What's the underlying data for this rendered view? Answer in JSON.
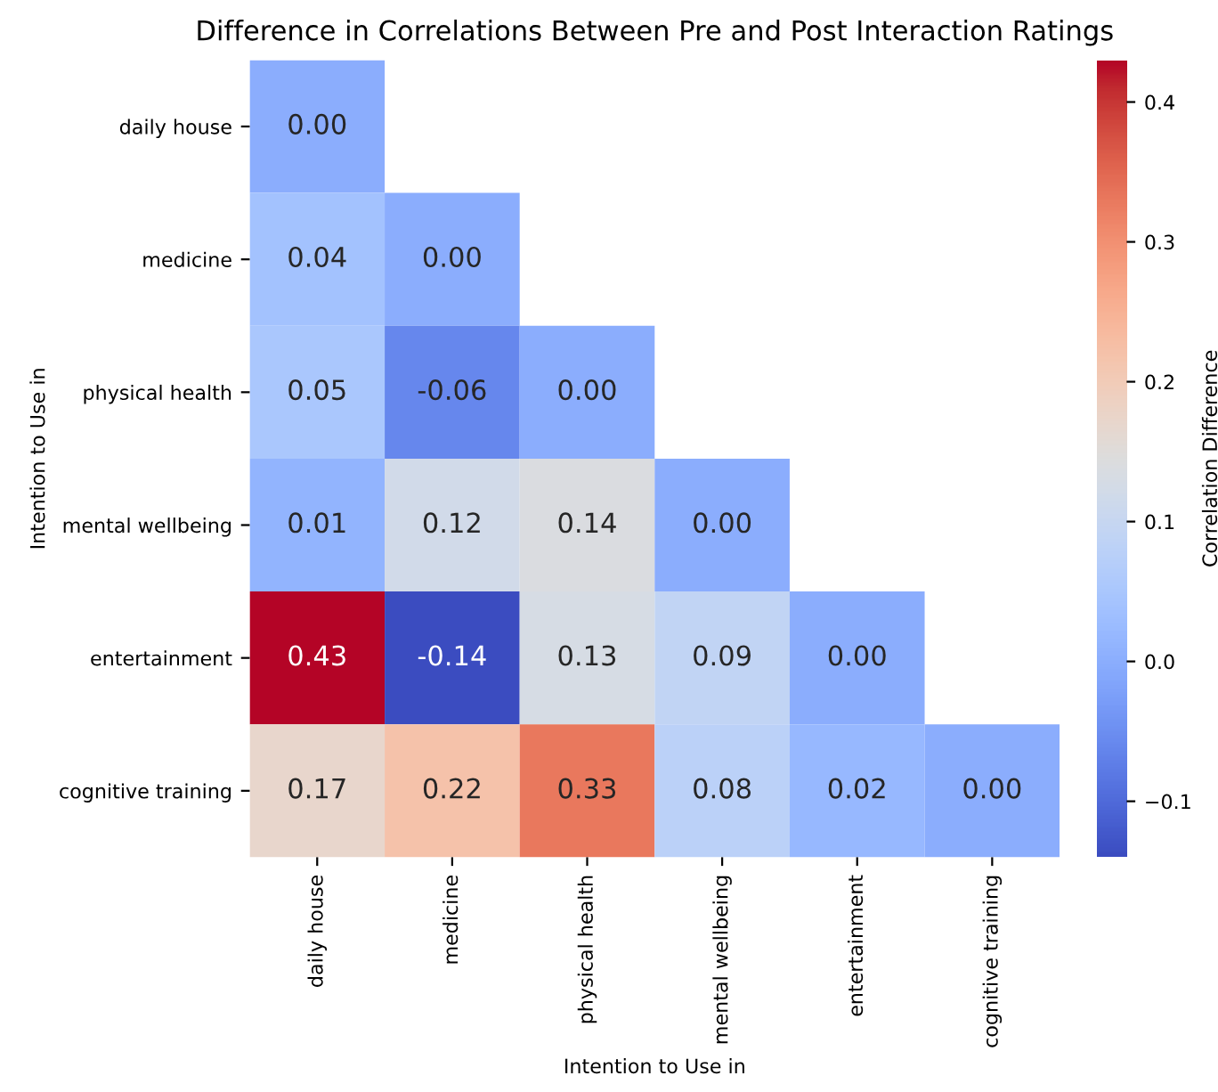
{
  "chart_data": {
    "type": "heatmap",
    "title": "Difference in Correlations Between Pre and Post Interaction Ratings",
    "xlabel": "Intention to Use in",
    "ylabel": "Intention to Use in",
    "clabel": "Correlation Difference",
    "categories": [
      "daily house",
      "medicine",
      "physical health",
      "mental wellbeing",
      "entertainment",
      "cognitive training"
    ],
    "y_categories": [
      "daily house",
      "medicine",
      "physical health",
      "mental wellbeing",
      "entertainment",
      "cognitive training"
    ],
    "cells": [
      [
        0.0,
        null,
        null,
        null,
        null,
        null
      ],
      [
        0.04,
        0.0,
        null,
        null,
        null,
        null
      ],
      [
        0.05,
        -0.06,
        0.0,
        null,
        null,
        null
      ],
      [
        0.01,
        0.12,
        0.14,
        0.0,
        null,
        null
      ],
      [
        0.43,
        -0.14,
        0.13,
        0.09,
        0.0,
        null
      ],
      [
        0.17,
        0.22,
        0.33,
        0.08,
        0.02,
        0.0
      ]
    ],
    "cell_labels": [
      [
        "0.00",
        null,
        null,
        null,
        null,
        null
      ],
      [
        "0.04",
        "0.00",
        null,
        null,
        null,
        null
      ],
      [
        "0.05",
        "-0.06",
        "0.00",
        null,
        null,
        null
      ],
      [
        "0.01",
        "0.12",
        "0.14",
        "0.00",
        null,
        null
      ],
      [
        "0.43",
        "-0.14",
        "0.13",
        "0.09",
        "0.00",
        null
      ],
      [
        "0.17",
        "0.22",
        "0.33",
        "0.08",
        "0.02",
        "0.00"
      ]
    ],
    "clim": [
      -0.14,
      0.43
    ],
    "cticks": [
      {
        "value": -0.1,
        "label": "−0.1"
      },
      {
        "value": 0,
        "label": "0.0"
      },
      0.1,
      0.2,
      0.3,
      0.4
    ]
  }
}
